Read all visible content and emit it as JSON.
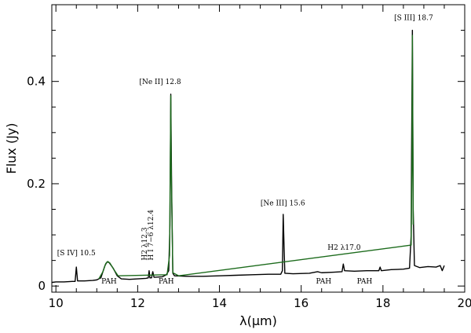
{
  "chart_data": {
    "type": "line",
    "xlabel": "λ(μm)",
    "ylabel": "Flux (Jy)",
    "xlim": [
      9.9,
      20.0
    ],
    "ylim": [
      -0.012,
      0.55
    ],
    "x_ticks": [
      10,
      12,
      14,
      16,
      18,
      20
    ],
    "x_tick_labels": [
      "10",
      "12",
      "14",
      "16",
      "18",
      "20"
    ],
    "y_ticks": [
      0,
      0.2,
      0.4
    ],
    "y_tick_labels": [
      "0",
      "0.2",
      "0.4"
    ],
    "grid": false,
    "series": [
      {
        "color": "#000000",
        "points": [
          [
            9.9,
            0.007
          ],
          [
            10.0,
            0.008
          ],
          [
            10.2,
            0.008
          ],
          [
            10.4,
            0.009
          ],
          [
            10.47,
            0.009
          ],
          [
            10.5,
            0.037
          ],
          [
            10.53,
            0.01
          ],
          [
            10.7,
            0.01
          ],
          [
            10.9,
            0.011
          ],
          [
            11.0,
            0.012
          ],
          [
            11.1,
            0.016
          ],
          [
            11.2,
            0.04
          ],
          [
            11.25,
            0.047
          ],
          [
            11.3,
            0.046
          ],
          [
            11.4,
            0.035
          ],
          [
            11.5,
            0.02
          ],
          [
            11.6,
            0.014
          ],
          [
            11.8,
            0.013
          ],
          [
            12.0,
            0.014
          ],
          [
            12.2,
            0.015
          ],
          [
            12.26,
            0.016
          ],
          [
            12.28,
            0.03
          ],
          [
            12.3,
            0.016
          ],
          [
            12.34,
            0.016
          ],
          [
            12.37,
            0.028
          ],
          [
            12.4,
            0.017
          ],
          [
            12.6,
            0.018
          ],
          [
            12.7,
            0.022
          ],
          [
            12.76,
            0.03
          ],
          [
            12.79,
            0.12
          ],
          [
            12.81,
            0.375
          ],
          [
            12.83,
            0.2
          ],
          [
            12.86,
            0.025
          ],
          [
            12.9,
            0.02
          ],
          [
            13.2,
            0.019
          ],
          [
            13.6,
            0.019
          ],
          [
            14.0,
            0.02
          ],
          [
            14.4,
            0.021
          ],
          [
            14.8,
            0.022
          ],
          [
            15.2,
            0.023
          ],
          [
            15.5,
            0.023
          ],
          [
            15.54,
            0.03
          ],
          [
            15.56,
            0.14
          ],
          [
            15.58,
            0.08
          ],
          [
            15.6,
            0.025
          ],
          [
            15.8,
            0.024
          ],
          [
            16.2,
            0.025
          ],
          [
            16.4,
            0.028
          ],
          [
            16.5,
            0.026
          ],
          [
            16.8,
            0.027
          ],
          [
            17.0,
            0.028
          ],
          [
            17.03,
            0.043
          ],
          [
            17.06,
            0.03
          ],
          [
            17.3,
            0.029
          ],
          [
            17.6,
            0.03
          ],
          [
            17.9,
            0.03
          ],
          [
            17.93,
            0.037
          ],
          [
            17.96,
            0.03
          ],
          [
            18.2,
            0.032
          ],
          [
            18.5,
            0.033
          ],
          [
            18.65,
            0.035
          ],
          [
            18.69,
            0.1
          ],
          [
            18.7,
            0.26
          ],
          [
            18.72,
            0.5
          ],
          [
            18.74,
            0.15
          ],
          [
            18.77,
            0.04
          ],
          [
            18.9,
            0.036
          ],
          [
            19.1,
            0.038
          ],
          [
            19.3,
            0.037
          ],
          [
            19.4,
            0.04
          ],
          [
            19.45,
            0.03
          ],
          [
            19.5,
            0.04
          ]
        ]
      },
      {
        "color": "#1c6b1c",
        "points": [
          [
            11.05,
            0.014
          ],
          [
            11.15,
            0.028
          ],
          [
            11.22,
            0.044
          ],
          [
            11.27,
            0.048
          ],
          [
            11.32,
            0.045
          ],
          [
            11.42,
            0.032
          ],
          [
            11.52,
            0.02
          ],
          [
            12.72,
            0.022
          ],
          [
            12.78,
            0.06
          ],
          [
            12.81,
            0.372
          ],
          [
            12.82,
            0.24
          ],
          [
            12.86,
            0.026
          ],
          [
            13.0,
            0.02
          ],
          [
            18.69,
            0.08
          ],
          [
            18.71,
            0.25
          ],
          [
            18.72,
            0.49
          ],
          [
            18.74,
            0.12
          ]
        ]
      }
    ],
    "annotations": [
      {
        "text": "[S IV] 10.5",
        "x": 10.5,
        "y": 0.06,
        "rotation": 0
      },
      {
        "text": "PAH",
        "x": 11.3,
        "y": 0.005,
        "rotation": 0
      },
      {
        "text": "H2 λ12.3",
        "x": 12.22,
        "y": 0.05,
        "rotation": -90
      },
      {
        "text": "H I 7−6 λ12.4",
        "x": 12.38,
        "y": 0.05,
        "rotation": -90
      },
      {
        "text": "PAH",
        "x": 12.7,
        "y": 0.005,
        "rotation": 0
      },
      {
        "text": "[Ne II] 12.8",
        "x": 12.55,
        "y": 0.395,
        "rotation": 0
      },
      {
        "text": "[Ne III] 15.6",
        "x": 15.55,
        "y": 0.158,
        "rotation": 0
      },
      {
        "text": "PAH",
        "x": 16.55,
        "y": 0.005,
        "rotation": 0
      },
      {
        "text": "H2 λ17.0",
        "x": 17.05,
        "y": 0.071,
        "rotation": 0
      },
      {
        "text": "PAH",
        "x": 17.55,
        "y": 0.005,
        "rotation": 0
      },
      {
        "text": "[S III] 18.7",
        "x": 18.75,
        "y": 0.52,
        "rotation": 0
      }
    ]
  }
}
